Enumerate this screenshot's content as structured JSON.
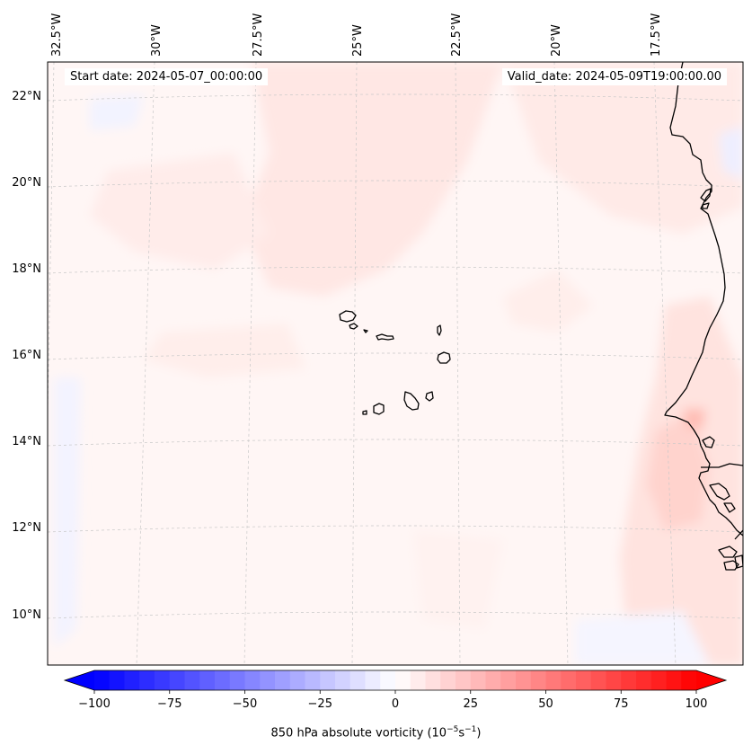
{
  "map": {
    "start_date_text": "Start date: 2024-05-07_00:00:00",
    "valid_date_text": "Valid_date: 2024-05-09T19:00:00.00",
    "field": "850 hPa absolute vorticity",
    "longitude_labels": [
      "32.5°W",
      "30°W",
      "27.5°W",
      "25°W",
      "22.5°W",
      "20°W",
      "17.5°W"
    ],
    "latitude_labels": [
      "22°N",
      "20°N",
      "18°N",
      "16°N",
      "14°N",
      "12°N",
      "10°N"
    ],
    "features": [
      "Cape Verde islands",
      "West African coastline"
    ],
    "gridlines": true,
    "coastline_color": "#000000"
  },
  "colorbar": {
    "label_prefix": "850 hPa absolute vorticity (10",
    "label_exp1": "−5",
    "label_mid": "s",
    "label_exp2": "−1",
    "label_suffix": ")",
    "ticks": [
      "−100",
      "−75",
      "−50",
      "−25",
      "0",
      "25",
      "50",
      "75",
      "100"
    ],
    "min": -100,
    "max": 100,
    "extend": "both",
    "colormap": "bwr",
    "low_color": "#0000ff",
    "mid_color": "#ffffff",
    "high_color": "#ff0000"
  }
}
